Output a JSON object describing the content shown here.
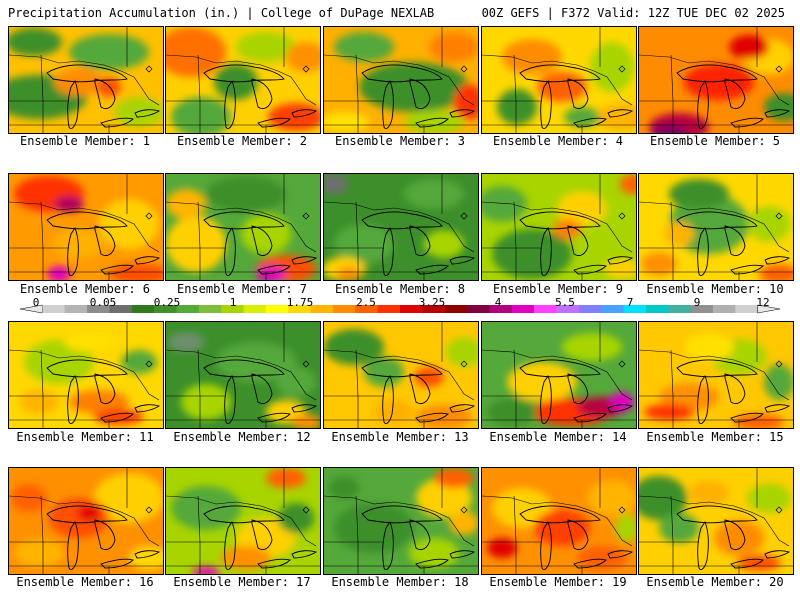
{
  "header": {
    "title_left": "Precipitation Accumulation (in.) | College of DuPage NEXLAB",
    "title_right": "00Z GEFS | F372 Valid: 12Z TUE DEC 02 2025"
  },
  "colorbar": {
    "labels": [
      "0",
      "0.05",
      "0.25",
      "1",
      "1.75",
      "2.5",
      "3.25",
      "4",
      "5.5",
      "7",
      "9",
      "12"
    ],
    "colors": [
      "#e8e8e8",
      "#cfcfcf",
      "#b4b4b4",
      "#8c8c8c",
      "#6e6e6e",
      "#2f7a1f",
      "#3f8f2a",
      "#55a83a",
      "#7dbf3a",
      "#a8d400",
      "#d8f000",
      "#ffff00",
      "#ffd800",
      "#ffb400",
      "#ff8c00",
      "#ff6000",
      "#ff3000",
      "#e00000",
      "#b80000",
      "#900000",
      "#800040",
      "#b0007a",
      "#e000c0",
      "#ff40ff",
      "#c070ff",
      "#8080ff",
      "#4aa0ff",
      "#00e0ff",
      "#00c8c8",
      "#40b0a0",
      "#909090",
      "#b0b0b0",
      "#d0d0d0",
      "#e8e8e8"
    ]
  },
  "panels": [
    {
      "label": "Ensemble Member: 1",
      "base": "#ffc000",
      "blobs": [
        [
          "#3c8f2a",
          30,
          70,
          48,
          22
        ],
        [
          "#55a83a",
          100,
          25,
          40,
          18
        ],
        [
          "#ff8c00",
          70,
          55,
          25,
          14
        ],
        [
          "#ff5000",
          100,
          60,
          12,
          10
        ],
        [
          "#3c8f2a",
          25,
          15,
          28,
          14
        ],
        [
          "#a8d400",
          130,
          85,
          25,
          15
        ]
      ]
    },
    {
      "label": "Ensemble Member: 2",
      "base": "#ffd000",
      "blobs": [
        [
          "#ff7000",
          25,
          25,
          35,
          25
        ],
        [
          "#ff4000",
          130,
          90,
          28,
          14
        ],
        [
          "#55a83a",
          35,
          90,
          30,
          20
        ],
        [
          "#a8d400",
          100,
          20,
          30,
          15
        ],
        [
          "#3c8f2a",
          70,
          55,
          22,
          18
        ],
        [
          "#ff9000",
          140,
          30,
          20,
          15
        ]
      ]
    },
    {
      "label": "Ensemble Member: 3",
      "base": "#ffb000",
      "blobs": [
        [
          "#3c8f2a",
          90,
          60,
          55,
          25
        ],
        [
          "#55a83a",
          40,
          20,
          30,
          15
        ],
        [
          "#ff3000",
          145,
          75,
          15,
          18
        ],
        [
          "#ff8000",
          130,
          20,
          25,
          15
        ],
        [
          "#a8d400",
          110,
          95,
          30,
          12
        ],
        [
          "#ffe000",
          20,
          95,
          25,
          10
        ]
      ]
    },
    {
      "label": "Ensemble Member: 4",
      "base": "#ffd800",
      "blobs": [
        [
          "#ff8c00",
          50,
          30,
          30,
          18
        ],
        [
          "#ff6000",
          80,
          60,
          25,
          15
        ],
        [
          "#a8d400",
          130,
          40,
          22,
          25
        ],
        [
          "#3c8f2a",
          35,
          80,
          20,
          18
        ],
        [
          "#ffb400",
          140,
          90,
          25,
          14
        ],
        [
          "#55a83a",
          100,
          90,
          18,
          10
        ]
      ]
    },
    {
      "label": "Ensemble Member: 5",
      "base": "#ff8c00",
      "blobs": [
        [
          "#ff2000",
          80,
          55,
          35,
          18
        ],
        [
          "#b80040",
          40,
          100,
          30,
          14
        ],
        [
          "#800060",
          30,
          105,
          18,
          8
        ],
        [
          "#3c8f2a",
          145,
          80,
          20,
          14
        ],
        [
          "#ffd000",
          130,
          30,
          25,
          18
        ],
        [
          "#e00000",
          110,
          20,
          20,
          12
        ]
      ]
    },
    {
      "label": "Ensemble Member: 6",
      "base": "#ff9a00",
      "blobs": [
        [
          "#ff3000",
          40,
          20,
          35,
          18
        ],
        [
          "#b00060",
          60,
          30,
          15,
          8
        ],
        [
          "#ffd000",
          120,
          50,
          30,
          25
        ],
        [
          "#ffb000",
          70,
          70,
          25,
          15
        ],
        [
          "#e000c0",
          50,
          100,
          12,
          8
        ],
        [
          "#ff5000",
          130,
          100,
          30,
          10
        ]
      ]
    },
    {
      "label": "Ensemble Member: 7",
      "base": "#55a83a",
      "blobs": [
        [
          "#ffd000",
          30,
          70,
          30,
          28
        ],
        [
          "#a8d400",
          100,
          60,
          25,
          20
        ],
        [
          "#ff5000",
          120,
          95,
          30,
          14
        ],
        [
          "#e000c0",
          105,
          100,
          15,
          8
        ],
        [
          "#3c8f2a",
          80,
          20,
          40,
          18
        ],
        [
          "#ffb400",
          20,
          30,
          20,
          15
        ]
      ]
    },
    {
      "label": "Ensemble Member: 8",
      "base": "#3c8f2a",
      "blobs": [
        [
          "#55a83a",
          40,
          70,
          30,
          20
        ],
        [
          "#ffd000",
          20,
          95,
          22,
          12
        ],
        [
          "#ff9000",
          25,
          100,
          12,
          7
        ],
        [
          "#a8d400",
          120,
          70,
          20,
          14
        ],
        [
          "#6e6e6e",
          10,
          10,
          14,
          10
        ],
        [
          "#55a83a",
          110,
          20,
          30,
          15
        ]
      ]
    },
    {
      "label": "Ensemble Member: 9",
      "base": "#a8d400",
      "blobs": [
        [
          "#3c8f2a",
          50,
          80,
          40,
          25
        ],
        [
          "#ffd000",
          100,
          35,
          25,
          18
        ],
        [
          "#ff8000",
          85,
          55,
          14,
          10
        ],
        [
          "#55a83a",
          20,
          30,
          25,
          18
        ],
        [
          "#ff6000",
          150,
          10,
          12,
          10
        ],
        [
          "#ffd000",
          140,
          95,
          18,
          10
        ]
      ]
    },
    {
      "label": "Ensemble Member: 10",
      "base": "#ffd800",
      "blobs": [
        [
          "#55a83a",
          70,
          50,
          40,
          30
        ],
        [
          "#3c8f2a",
          60,
          20,
          30,
          15
        ],
        [
          "#a8d400",
          130,
          50,
          22,
          18
        ],
        [
          "#ff9000",
          20,
          90,
          18,
          12
        ],
        [
          "#ff6000",
          140,
          100,
          20,
          10
        ],
        [
          "#ffb400",
          40,
          60,
          15,
          12
        ]
      ]
    },
    {
      "label": "Ensemble Member: 11",
      "base": "#ffd800",
      "blobs": [
        [
          "#a8d400",
          50,
          40,
          35,
          22
        ],
        [
          "#ff8000",
          90,
          80,
          30,
          12
        ],
        [
          "#ff4000",
          110,
          95,
          25,
          8
        ],
        [
          "#ffb400",
          30,
          80,
          20,
          12
        ],
        [
          "#55a83a",
          130,
          40,
          18,
          12
        ],
        [
          "#ffe000",
          80,
          20,
          25,
          10
        ]
      ]
    },
    {
      "label": "Ensemble Member: 12",
      "base": "#3c8f2a",
      "blobs": [
        [
          "#55a83a",
          90,
          40,
          40,
          20
        ],
        [
          "#a8d400",
          40,
          80,
          25,
          18
        ],
        [
          "#ffd000",
          120,
          90,
          20,
          12
        ],
        [
          "#ff9000",
          140,
          100,
          15,
          8
        ],
        [
          "#6e8f6e",
          20,
          20,
          18,
          10
        ],
        [
          "#55a83a",
          130,
          60,
          20,
          15
        ]
      ]
    },
    {
      "label": "Ensemble Member: 13",
      "base": "#ffc800",
      "blobs": [
        [
          "#3c8f2a",
          30,
          25,
          30,
          18
        ],
        [
          "#55a83a",
          60,
          50,
          20,
          15
        ],
        [
          "#ff5000",
          105,
          55,
          15,
          10
        ],
        [
          "#ff8c00",
          120,
          95,
          28,
          12
        ],
        [
          "#a8d400",
          140,
          30,
          18,
          15
        ],
        [
          "#ffb000",
          70,
          90,
          20,
          12
        ]
      ]
    },
    {
      "label": "Ensemble Member: 14",
      "base": "#55a83a",
      "blobs": [
        [
          "#ffd000",
          60,
          60,
          35,
          20
        ],
        [
          "#ff3000",
          90,
          90,
          40,
          14
        ],
        [
          "#b80040",
          120,
          85,
          25,
          10
        ],
        [
          "#e000c0",
          140,
          80,
          12,
          10
        ],
        [
          "#3c8f2a",
          30,
          90,
          25,
          14
        ],
        [
          "#a8d400",
          110,
          25,
          30,
          14
        ]
      ]
    },
    {
      "label": "Ensemble Member: 15",
      "base": "#ffc800",
      "blobs": [
        [
          "#a8d400",
          100,
          35,
          28,
          18
        ],
        [
          "#ff9000",
          50,
          75,
          30,
          14
        ],
        [
          "#ff3000",
          30,
          90,
          25,
          8
        ],
        [
          "#55a83a",
          140,
          60,
          15,
          18
        ],
        [
          "#ffe000",
          70,
          25,
          25,
          14
        ],
        [
          "#ff6000",
          120,
          100,
          25,
          8
        ]
      ]
    },
    {
      "label": "Ensemble Member: 16",
      "base": "#ff9000",
      "blobs": [
        [
          "#ffd000",
          120,
          30,
          35,
          25
        ],
        [
          "#ff5000",
          70,
          50,
          30,
          20
        ],
        [
          "#e00000",
          80,
          45,
          12,
          8
        ],
        [
          "#ffb400",
          30,
          85,
          25,
          14
        ],
        [
          "#ff6000",
          20,
          30,
          18,
          14
        ],
        [
          "#ffd800",
          140,
          90,
          20,
          12
        ]
      ]
    },
    {
      "label": "Ensemble Member: 17",
      "base": "#a8d400",
      "blobs": [
        [
          "#55a83a",
          40,
          40,
          35,
          22
        ],
        [
          "#ffd000",
          100,
          70,
          30,
          20
        ],
        [
          "#ff6000",
          120,
          10,
          20,
          10
        ],
        [
          "#e000c0",
          40,
          104,
          14,
          5
        ],
        [
          "#ff9000",
          80,
          90,
          25,
          12
        ],
        [
          "#3c8f2a",
          130,
          50,
          18,
          15
        ]
      ]
    },
    {
      "label": "Ensemble Member: 18",
      "base": "#55a83a",
      "blobs": [
        [
          "#3c8f2a",
          50,
          60,
          40,
          25
        ],
        [
          "#ffd000",
          120,
          30,
          28,
          20
        ],
        [
          "#ff6000",
          130,
          10,
          20,
          10
        ],
        [
          "#a8d400",
          110,
          85,
          25,
          15
        ],
        [
          "#ffb400",
          140,
          55,
          15,
          12
        ],
        [
          "#3c8f2a",
          20,
          20,
          15,
          12
        ]
      ]
    },
    {
      "label": "Ensemble Member: 19",
      "base": "#ff9000",
      "blobs": [
        [
          "#ffd000",
          40,
          40,
          30,
          20
        ],
        [
          "#ff4000",
          80,
          60,
          28,
          18
        ],
        [
          "#e00000",
          20,
          80,
          15,
          10
        ],
        [
          "#ffb400",
          130,
          30,
          25,
          18
        ],
        [
          "#ff6000",
          120,
          90,
          25,
          12
        ],
        [
          "#a8d400",
          145,
          60,
          12,
          14
        ]
      ]
    },
    {
      "label": "Ensemble Member: 20",
      "base": "#ffd000",
      "blobs": [
        [
          "#3c8f2a",
          20,
          30,
          28,
          22
        ],
        [
          "#55a83a",
          40,
          60,
          20,
          15
        ],
        [
          "#ff8c00",
          100,
          70,
          25,
          18
        ],
        [
          "#ff5000",
          120,
          95,
          22,
          8
        ],
        [
          "#a8d400",
          130,
          30,
          22,
          15
        ],
        [
          "#ffb000",
          70,
          25,
          20,
          12
        ]
      ]
    }
  ]
}
